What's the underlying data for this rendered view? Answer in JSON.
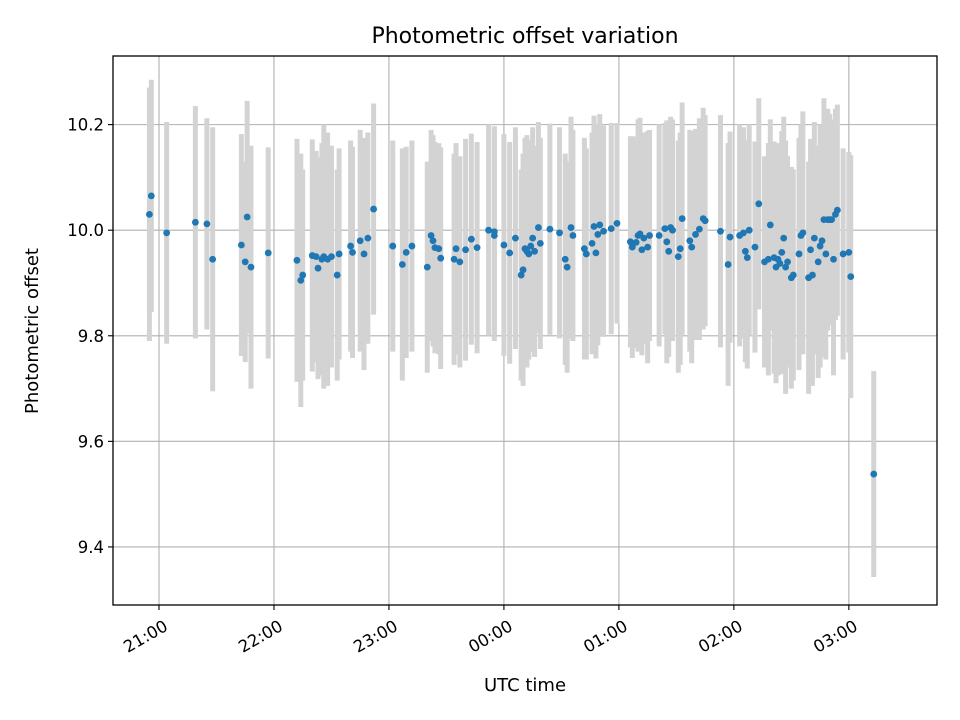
{
  "chart_data": {
    "type": "scatter",
    "title": "Photometric offset variation",
    "xlabel": "UTC time",
    "ylabel": "Photometric offset",
    "x_units": "UTC time (HH:MM)",
    "xlim": [
      "20:36",
      "03:46"
    ],
    "ylim": [
      9.29,
      10.33
    ],
    "grid": true,
    "marker_color": "#1f77b4",
    "errorbar_color": "#d3d3d3",
    "xticks": [
      "21:00",
      "22:00",
      "23:00",
      "00:00",
      "01:00",
      "02:00",
      "03:00"
    ],
    "yticks": [
      "9.4",
      "9.6",
      "9.8",
      "10.0",
      "10.2"
    ],
    "points": [
      {
        "x": "20:55",
        "y": 10.03,
        "err": 0.24
      },
      {
        "x": "20:56",
        "y": 10.065,
        "err": 0.22
      },
      {
        "x": "21:04",
        "y": 9.995,
        "err": 0.21
      },
      {
        "x": "21:19",
        "y": 10.015,
        "err": 0.22
      },
      {
        "x": "21:25",
        "y": 10.012,
        "err": 0.2
      },
      {
        "x": "21:28",
        "y": 9.945,
        "err": 0.25
      },
      {
        "x": "21:43",
        "y": 9.972,
        "err": 0.21
      },
      {
        "x": "21:45",
        "y": 9.94,
        "err": 0.19
      },
      {
        "x": "21:46",
        "y": 10.025,
        "err": 0.22
      },
      {
        "x": "21:48",
        "y": 9.93,
        "err": 0.23
      },
      {
        "x": "21:57",
        "y": 9.957,
        "err": 0.2
      },
      {
        "x": "22:12",
        "y": 9.943,
        "err": 0.23
      },
      {
        "x": "22:14",
        "y": 9.905,
        "err": 0.24
      },
      {
        "x": "22:15",
        "y": 9.915,
        "err": 0.2
      },
      {
        "x": "22:20",
        "y": 9.952,
        "err": 0.22
      },
      {
        "x": "22:22",
        "y": 9.95,
        "err": 0.2
      },
      {
        "x": "22:23",
        "y": 9.928,
        "err": 0.21
      },
      {
        "x": "22:25",
        "y": 9.945,
        "err": 0.22
      },
      {
        "x": "22:26",
        "y": 9.95,
        "err": 0.25
      },
      {
        "x": "22:28",
        "y": 9.945,
        "err": 0.24
      },
      {
        "x": "22:30",
        "y": 9.95,
        "err": 0.21
      },
      {
        "x": "22:33",
        "y": 9.915,
        "err": 0.2
      },
      {
        "x": "22:34",
        "y": 9.955,
        "err": 0.2
      },
      {
        "x": "22:40",
        "y": 9.97,
        "err": 0.2
      },
      {
        "x": "22:41",
        "y": 9.958,
        "err": 0.2
      },
      {
        "x": "22:45",
        "y": 9.98,
        "err": 0.21
      },
      {
        "x": "22:47",
        "y": 9.955,
        "err": 0.22
      },
      {
        "x": "22:49",
        "y": 9.985,
        "err": 0.2
      },
      {
        "x": "22:52",
        "y": 10.04,
        "err": 0.2
      },
      {
        "x": "23:02",
        "y": 9.97,
        "err": 0.2
      },
      {
        "x": "23:07",
        "y": 9.935,
        "err": 0.22
      },
      {
        "x": "23:09",
        "y": 9.958,
        "err": 0.2
      },
      {
        "x": "23:12",
        "y": 9.97,
        "err": 0.2
      },
      {
        "x": "23:20",
        "y": 9.93,
        "err": 0.2
      },
      {
        "x": "23:22",
        "y": 9.99,
        "err": 0.2
      },
      {
        "x": "23:23",
        "y": 9.98,
        "err": 0.2
      },
      {
        "x": "23:24",
        "y": 9.967,
        "err": 0.2
      },
      {
        "x": "23:26",
        "y": 9.965,
        "err": 0.2
      },
      {
        "x": "23:27",
        "y": 9.947,
        "err": 0.21
      },
      {
        "x": "23:34",
        "y": 9.945,
        "err": 0.2
      },
      {
        "x": "23:35",
        "y": 9.965,
        "err": 0.2
      },
      {
        "x": "23:37",
        "y": 9.94,
        "err": 0.2
      },
      {
        "x": "23:40",
        "y": 9.963,
        "err": 0.21
      },
      {
        "x": "23:43",
        "y": 9.983,
        "err": 0.2
      },
      {
        "x": "23:46",
        "y": 9.967,
        "err": 0.2
      },
      {
        "x": "23:52",
        "y": 10.0,
        "err": 0.2
      },
      {
        "x": "23:55",
        "y": 9.99,
        "err": 0.2
      },
      {
        "x": "23:55",
        "y": 9.997,
        "err": 0.2
      },
      {
        "x": "00:00",
        "y": 9.972,
        "err": 0.21
      },
      {
        "x": "00:03",
        "y": 9.957,
        "err": 0.21
      },
      {
        "x": "00:06",
        "y": 9.985,
        "err": 0.21
      },
      {
        "x": "00:09",
        "y": 9.915,
        "err": 0.2
      },
      {
        "x": "00:10",
        "y": 9.925,
        "err": 0.22
      },
      {
        "x": "00:11",
        "y": 9.965,
        "err": 0.21
      },
      {
        "x": "00:12",
        "y": 9.96,
        "err": 0.22
      },
      {
        "x": "00:13",
        "y": 9.955,
        "err": 0.2
      },
      {
        "x": "00:14",
        "y": 9.97,
        "err": 0.2
      },
      {
        "x": "00:15",
        "y": 9.985,
        "err": 0.21
      },
      {
        "x": "00:16",
        "y": 9.96,
        "err": 0.2
      },
      {
        "x": "00:18",
        "y": 10.005,
        "err": 0.2
      },
      {
        "x": "00:19",
        "y": 9.975,
        "err": 0.2
      },
      {
        "x": "00:24",
        "y": 10.002,
        "err": 0.2
      },
      {
        "x": "00:29",
        "y": 9.995,
        "err": 0.2
      },
      {
        "x": "00:32",
        "y": 9.945,
        "err": 0.2
      },
      {
        "x": "00:33",
        "y": 9.93,
        "err": 0.2
      },
      {
        "x": "00:35",
        "y": 10.005,
        "err": 0.21
      },
      {
        "x": "00:36",
        "y": 9.99,
        "err": 0.2
      },
      {
        "x": "00:42",
        "y": 9.965,
        "err": 0.21
      },
      {
        "x": "00:43",
        "y": 9.955,
        "err": 0.2
      },
      {
        "x": "00:46",
        "y": 9.975,
        "err": 0.21
      },
      {
        "x": "00:47",
        "y": 10.007,
        "err": 0.21
      },
      {
        "x": "00:48",
        "y": 9.957,
        "err": 0.2
      },
      {
        "x": "00:49",
        "y": 9.992,
        "err": 0.21
      },
      {
        "x": "00:50",
        "y": 10.01,
        "err": 0.21
      },
      {
        "x": "00:52",
        "y": 9.998,
        "err": 0.2
      },
      {
        "x": "00:56",
        "y": 10.003,
        "err": 0.2
      },
      {
        "x": "00:59",
        "y": 10.013,
        "err": 0.19
      },
      {
        "x": "01:06",
        "y": 9.978,
        "err": 0.2
      },
      {
        "x": "01:07",
        "y": 9.968,
        "err": 0.21
      },
      {
        "x": "01:09",
        "y": 9.977,
        "err": 0.2
      },
      {
        "x": "01:10",
        "y": 9.99,
        "err": 0.22
      },
      {
        "x": "01:11",
        "y": 9.993,
        "err": 0.22
      },
      {
        "x": "01:12",
        "y": 9.963,
        "err": 0.2
      },
      {
        "x": "01:13",
        "y": 9.985,
        "err": 0.2
      },
      {
        "x": "01:15",
        "y": 9.968,
        "err": 0.22
      },
      {
        "x": "01:16",
        "y": 9.99,
        "err": 0.2
      },
      {
        "x": "01:21",
        "y": 9.99,
        "err": 0.21
      },
      {
        "x": "01:24",
        "y": 10.003,
        "err": 0.2
      },
      {
        "x": "01:25",
        "y": 9.978,
        "err": 0.23
      },
      {
        "x": "01:26",
        "y": 9.96,
        "err": 0.2
      },
      {
        "x": "01:27",
        "y": 10.005,
        "err": 0.21
      },
      {
        "x": "01:28",
        "y": 10.0,
        "err": 0.21
      },
      {
        "x": "01:31",
        "y": 9.95,
        "err": 0.22
      },
      {
        "x": "01:32",
        "y": 9.965,
        "err": 0.22
      },
      {
        "x": "01:33",
        "y": 10.022,
        "err": 0.22
      },
      {
        "x": "01:37",
        "y": 9.98,
        "err": 0.21
      },
      {
        "x": "01:38",
        "y": 9.968,
        "err": 0.22
      },
      {
        "x": "01:40",
        "y": 9.992,
        "err": 0.2
      },
      {
        "x": "01:42",
        "y": 10.002,
        "err": 0.21
      },
      {
        "x": "01:44",
        "y": 10.022,
        "err": 0.21
      },
      {
        "x": "01:45",
        "y": 10.018,
        "err": 0.2
      },
      {
        "x": "01:53",
        "y": 9.998,
        "err": 0.22
      },
      {
        "x": "01:57",
        "y": 9.935,
        "err": 0.23
      },
      {
        "x": "01:58",
        "y": 9.987,
        "err": 0.2
      },
      {
        "x": "02:03",
        "y": 9.99,
        "err": 0.21
      },
      {
        "x": "02:05",
        "y": 9.995,
        "err": 0.2
      },
      {
        "x": "02:06",
        "y": 9.96,
        "err": 0.21
      },
      {
        "x": "02:07",
        "y": 9.948,
        "err": 0.21
      },
      {
        "x": "02:08",
        "y": 10.0,
        "err": 0.2
      },
      {
        "x": "02:11",
        "y": 9.968,
        "err": 0.2
      },
      {
        "x": "02:13",
        "y": 10.05,
        "err": 0.2
      },
      {
        "x": "02:16",
        "y": 9.94,
        "err": 0.2
      },
      {
        "x": "02:18",
        "y": 9.945,
        "err": 0.22
      },
      {
        "x": "02:19",
        "y": 10.01,
        "err": 0.2
      },
      {
        "x": "02:21",
        "y": 9.948,
        "err": 0.22
      },
      {
        "x": "02:22",
        "y": 9.93,
        "err": 0.22
      },
      {
        "x": "02:23",
        "y": 9.945,
        "err": 0.22
      },
      {
        "x": "02:24",
        "y": 9.937,
        "err": 0.21
      },
      {
        "x": "02:25",
        "y": 9.958,
        "err": 0.23
      },
      {
        "x": "02:26",
        "y": 9.985,
        "err": 0.23
      },
      {
        "x": "02:27",
        "y": 9.93,
        "err": 0.24
      },
      {
        "x": "02:28",
        "y": 9.94,
        "err": 0.2
      },
      {
        "x": "02:30",
        "y": 9.91,
        "err": 0.21
      },
      {
        "x": "02:31",
        "y": 9.915,
        "err": 0.2
      },
      {
        "x": "02:34",
        "y": 9.955,
        "err": 0.22
      },
      {
        "x": "02:35",
        "y": 9.99,
        "err": 0.21
      },
      {
        "x": "02:36",
        "y": 9.995,
        "err": 0.23
      },
      {
        "x": "02:39",
        "y": 9.91,
        "err": 0.22
      },
      {
        "x": "02:40",
        "y": 9.963,
        "err": 0.21
      },
      {
        "x": "02:41",
        "y": 9.915,
        "err": 0.21
      },
      {
        "x": "02:42",
        "y": 9.985,
        "err": 0.22
      },
      {
        "x": "02:44",
        "y": 9.94,
        "err": 0.22
      },
      {
        "x": "02:45",
        "y": 9.97,
        "err": 0.23
      },
      {
        "x": "02:46",
        "y": 9.98,
        "err": 0.22
      },
      {
        "x": "02:47",
        "y": 10.02,
        "err": 0.23
      },
      {
        "x": "02:48",
        "y": 9.955,
        "err": 0.2
      },
      {
        "x": "02:49",
        "y": 10.02,
        "err": 0.21
      },
      {
        "x": "02:50",
        "y": 10.02,
        "err": 0.2
      },
      {
        "x": "02:51",
        "y": 10.02,
        "err": 0.19
      },
      {
        "x": "02:52",
        "y": 9.945,
        "err": 0.22
      },
      {
        "x": "02:53",
        "y": 10.03,
        "err": 0.2
      },
      {
        "x": "02:54",
        "y": 10.038,
        "err": 0.2
      },
      {
        "x": "02:57",
        "y": 9.955,
        "err": 0.2
      },
      {
        "x": "03:00",
        "y": 9.958,
        "err": 0.19
      },
      {
        "x": "03:01",
        "y": 9.912,
        "err": 0.23
      },
      {
        "x": "03:13",
        "y": 9.538,
        "err": 0.195
      }
    ]
  }
}
